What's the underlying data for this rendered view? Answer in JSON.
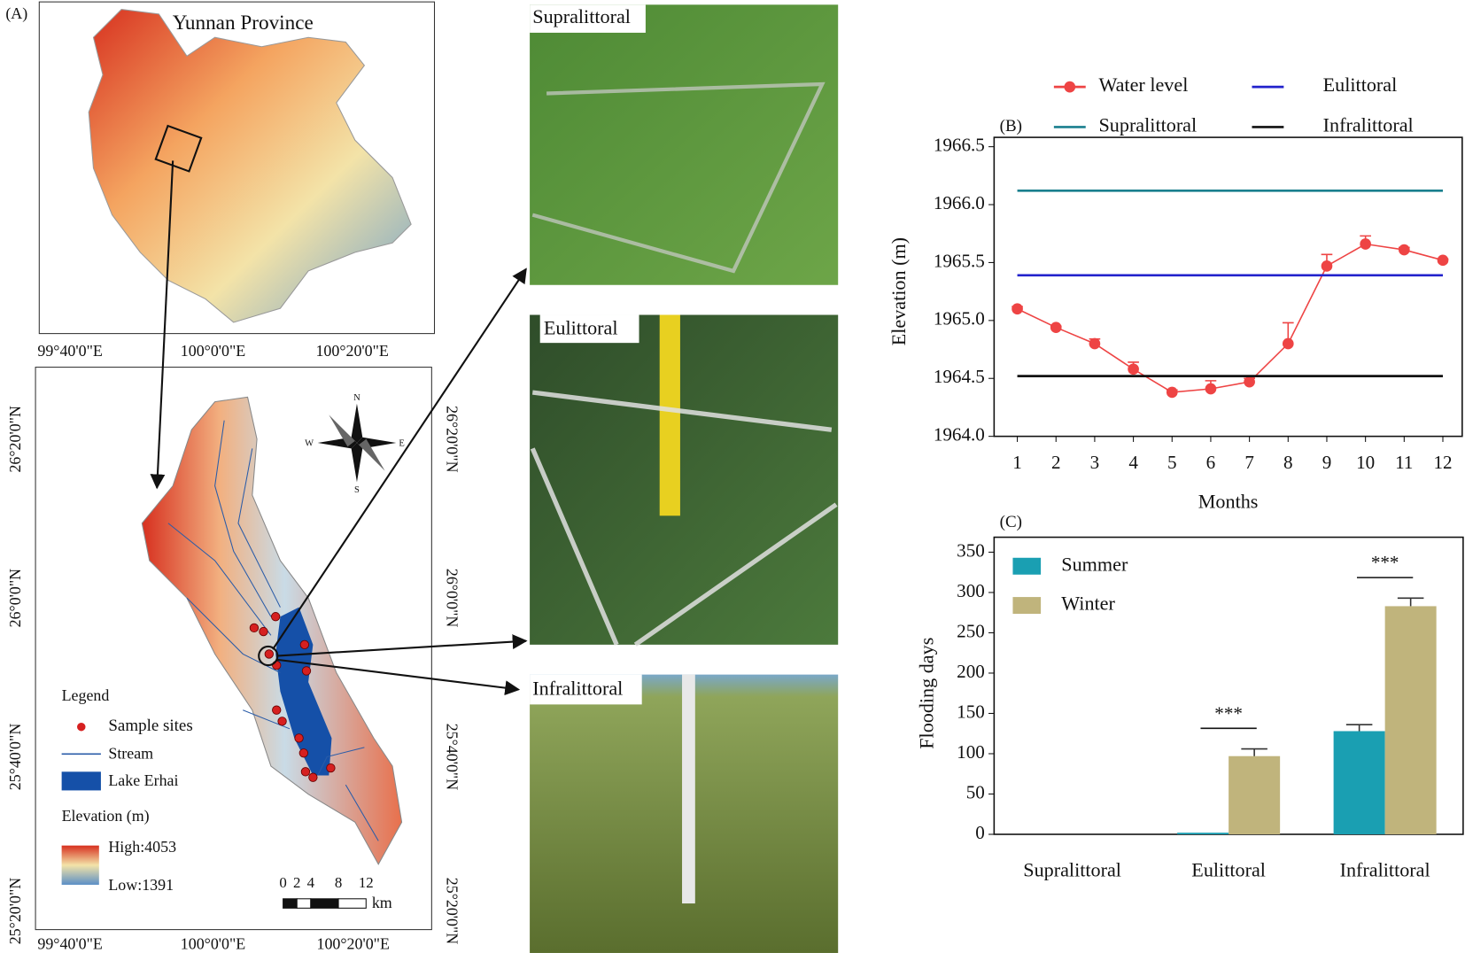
{
  "panel_a": {
    "label": "(A)",
    "title": "Yunnan Province",
    "lon_top": [
      "99°40'0\"E",
      "100°0'0\"E",
      "100°20'0\"E"
    ],
    "lon_bottom": [
      "99°40'0\"E",
      "100°0'0\"E",
      "100°20'0\"E"
    ],
    "lat_left": [
      "26°20'0\"N",
      "26°0'0\"N",
      "25°40'0\"N",
      "25°20'0\"N"
    ],
    "lat_right": [
      "26°20'0\"N",
      "26°0'0\"N",
      "25°40'0\"N",
      "25°20'0\"N"
    ],
    "compass": [
      "N",
      "E",
      "S",
      "W"
    ],
    "legend": {
      "title": "Legend",
      "items": [
        "Sample sites",
        "Stream",
        "Lake Erhai"
      ],
      "elevation_title": "Elevation (m)",
      "high": "High:4053",
      "low": "Low:1391"
    },
    "scale_bar": {
      "ticks": [
        0,
        2,
        4,
        8,
        12
      ],
      "unit": "km"
    }
  },
  "photos": [
    {
      "label": "Supralittoral"
    },
    {
      "label": "Eulittoral"
    },
    {
      "label": "Infralittoral"
    }
  ],
  "chart_data": [
    {
      "type": "line",
      "title": "(B)",
      "xlabel": "Months",
      "ylabel": "Elevation (m)",
      "x": [
        1,
        2,
        3,
        4,
        5,
        6,
        7,
        8,
        9,
        10,
        11,
        12
      ],
      "xlim": [
        0.4,
        12.5
      ],
      "xticks": [
        1,
        2,
        3,
        4,
        5,
        6,
        7,
        8,
        9,
        10,
        11,
        12
      ],
      "ylim": [
        1964.0,
        1966.5
      ],
      "yticks": [
        {
          "value": 1964.0,
          "label": "1964.0"
        },
        {
          "value": 1964.5,
          "label": "1964.5"
        },
        {
          "value": 1965.0,
          "label": "1965.0"
        },
        {
          "value": 1965.5,
          "label": "1965.5"
        },
        {
          "value": 1966.0,
          "label": "1966.0"
        },
        {
          "value": 1966.5,
          "label": "1966.5"
        }
      ],
      "series": [
        {
          "name": "Water level",
          "color": "#ee4444",
          "values": [
            1965.1,
            1964.94,
            1964.8,
            1964.58,
            1964.38,
            1964.41,
            1964.47,
            1964.8,
            1965.47,
            1965.66,
            1965.61,
            1965.52
          ],
          "errors": [
            0.02,
            0.01,
            0.04,
            0.06,
            0.02,
            0.07,
            0.03,
            0.18,
            0.1,
            0.07,
            0.02,
            0.01
          ]
        },
        {
          "name": "Supralittoral",
          "color": "#1a7f8e",
          "values": [
            1966.12,
            1966.12,
            1966.12,
            1966.12,
            1966.12,
            1966.12,
            1966.12,
            1966.12,
            1966.12,
            1966.12,
            1966.12,
            1966.12
          ]
        },
        {
          "name": "Eulittoral",
          "color": "#2222cc",
          "values": [
            1965.39,
            1965.39,
            1965.39,
            1965.39,
            1965.39,
            1965.39,
            1965.39,
            1965.39,
            1965.39,
            1965.39,
            1965.39,
            1965.39
          ]
        },
        {
          "name": "Infralittoral",
          "color": "#111111",
          "values": [
            1964.52,
            1964.52,
            1964.52,
            1964.52,
            1964.52,
            1964.52,
            1964.52,
            1964.52,
            1964.52,
            1964.52,
            1964.52,
            1964.52
          ]
        }
      ]
    },
    {
      "type": "bar",
      "title": "(C)",
      "ylabel": "Flooding days",
      "categories": [
        "Supralittoral",
        "Eulittoral",
        "Infralittoral"
      ],
      "ylim": [
        0,
        350
      ],
      "yticks": [
        0,
        50,
        100,
        150,
        200,
        250,
        300,
        350
      ],
      "series": [
        {
          "name": "Summer",
          "color": "#1a9fb2",
          "values": [
            0,
            2,
            128
          ],
          "errors": [
            0,
            0,
            8
          ]
        },
        {
          "name": "Winter",
          "color": "#c0b47c",
          "values": [
            0,
            97,
            283
          ],
          "errors": [
            0,
            9,
            10
          ]
        }
      ],
      "annotations": [
        {
          "text": "***"
        },
        {
          "text": "***"
        }
      ]
    }
  ]
}
